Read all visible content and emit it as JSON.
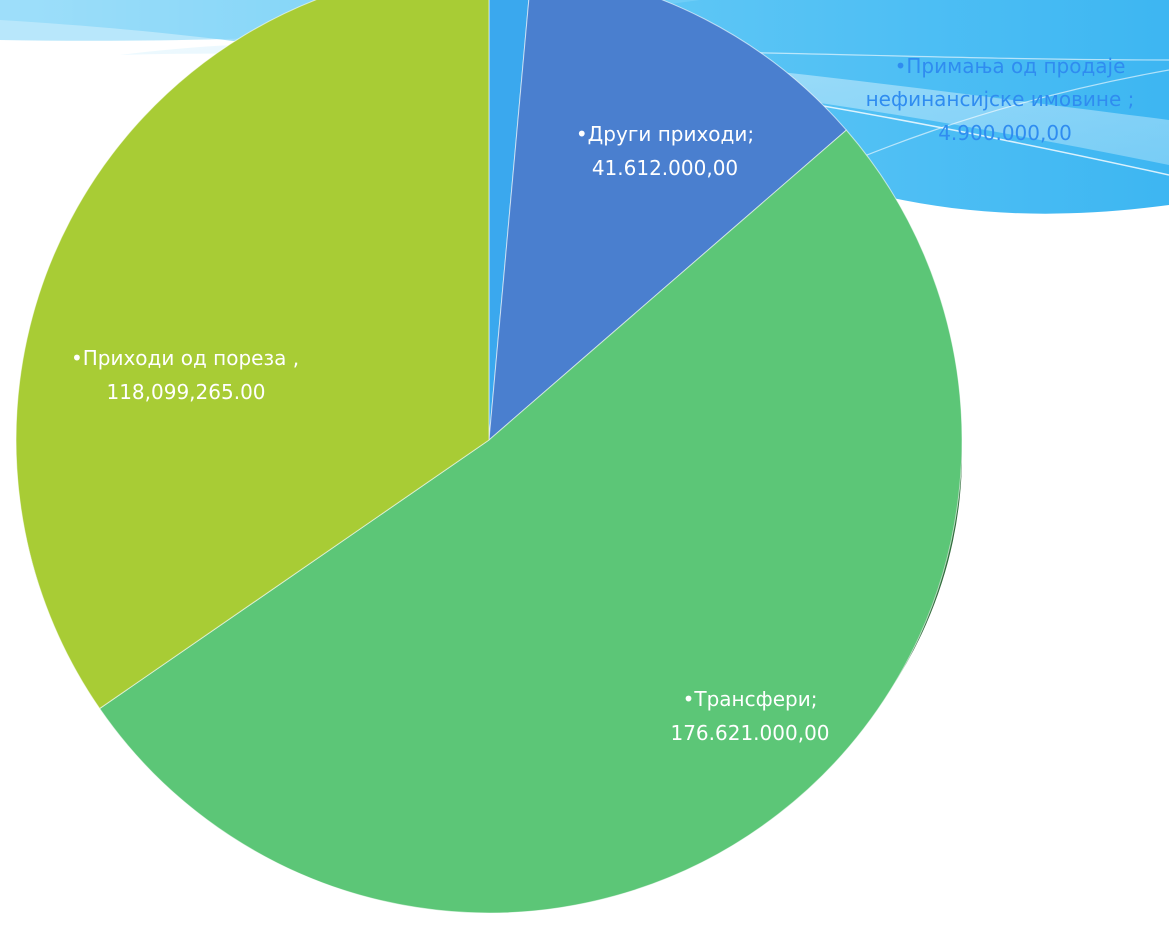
{
  "chart_data": {
    "type": "pie",
    "series": [
      {
        "label_line1": "•Примања од продаје",
        "label_line2": "нефинансијске имовине ;",
        "label_line3": "4.900.000,00",
        "value": 4900000,
        "color": "#3aa8ee"
      },
      {
        "label_line1": "•Други приходи;",
        "label_line2": "41.612.000,00",
        "value": 41612000,
        "color": "#4a7fcf"
      },
      {
        "label_line1": "•Трансфери;",
        "label_line2": "176.621.000,00",
        "value": 176621000,
        "color": "#5cc677"
      },
      {
        "label_line1": "•Приходи од  пореза ,",
        "label_line2": "118,099,265.00",
        "value": 118099265,
        "color": "#a8cc35"
      }
    ]
  }
}
